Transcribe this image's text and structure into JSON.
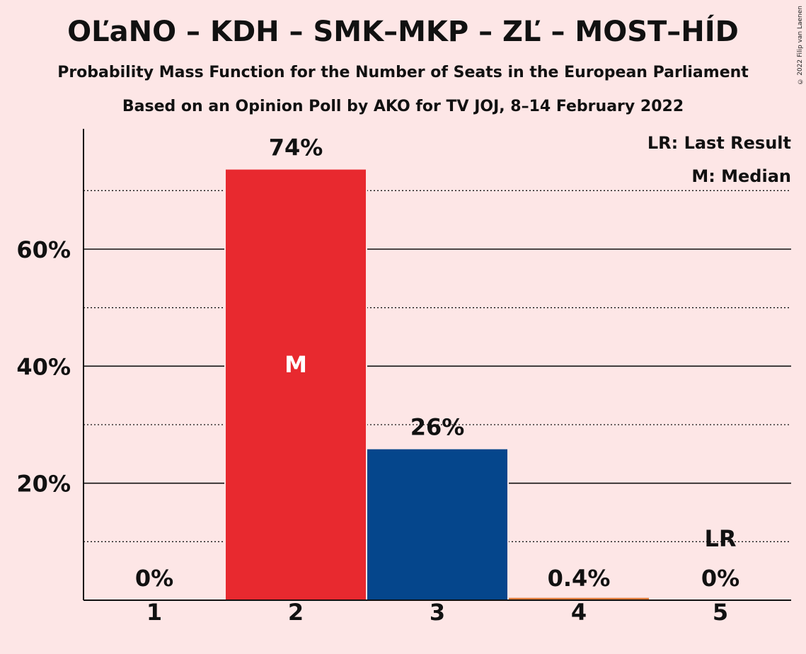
{
  "title": "OĽaNO – KDH – SMK–MKP – ZĽ – MOST–HÍD",
  "subtitle_1": "Probability Mass Function for the Number of Seats in the European Parliament",
  "subtitle_2": "Based on an Opinion Poll by AKO for TV JOJ, 8–14 February 2022",
  "copyright": "© 2022 Filip van Laenen",
  "legend": {
    "lr": "LR: Last Result",
    "median": "M: Median"
  },
  "chart_data": {
    "type": "bar",
    "categories": [
      "1",
      "2",
      "3",
      "4",
      "5"
    ],
    "values": [
      0,
      73.6,
      25.8,
      0.4,
      0
    ],
    "value_labels": [
      "0%",
      "74%",
      "26%",
      "0.4%",
      "0%"
    ],
    "bar_colors": [
      "#e8292f",
      "#e8292f",
      "#05468c",
      "#e07b39",
      "#e8292f"
    ],
    "ylim": [
      0,
      80
    ],
    "y_ticks": [
      20,
      40,
      60
    ],
    "y_tick_labels": [
      "20%",
      "40%",
      "60%"
    ],
    "dotted_gridlines": [
      10,
      30,
      50,
      70
    ],
    "median_category": "2",
    "median_label": "M",
    "last_result_category": "5",
    "last_result_label": "LR",
    "legend_placement": "top-right"
  },
  "colors": {
    "background": "#fde6e6",
    "axis": "#111111",
    "median_text": "#ffffff"
  }
}
